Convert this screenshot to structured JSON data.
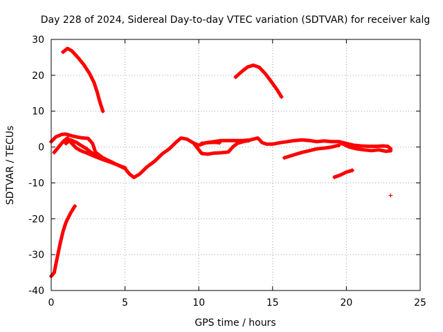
{
  "chart_data": {
    "type": "scatter",
    "title": "Day 228 of 2024, Sidereal Day-to-day VTEC variation (SDTVAR) for receiver kalg",
    "xlabel": "GPS time / hours",
    "ylabel": "SDTVAR / TECUs",
    "xlim": [
      0,
      25
    ],
    "ylim": [
      -40,
      30
    ],
    "xticks": [
      0,
      5,
      10,
      15,
      20,
      25
    ],
    "yticks": [
      -40,
      -30,
      -20,
      -10,
      0,
      10,
      20,
      30
    ],
    "grid": true,
    "color": "#ff0000",
    "marker": "+",
    "series": [
      {
        "name": "arc-early-high",
        "points": [
          [
            0.8,
            26.5
          ],
          [
            1.1,
            27.5
          ],
          [
            1.4,
            26.8
          ],
          [
            1.8,
            25
          ],
          [
            2.2,
            23
          ],
          [
            2.6,
            20.5
          ],
          [
            2.9,
            18
          ],
          [
            3.1,
            15.5
          ],
          [
            3.3,
            12.5
          ],
          [
            3.5,
            10
          ]
        ]
      },
      {
        "name": "arc-early-low",
        "points": [
          [
            0.0,
            -36
          ],
          [
            0.2,
            -35
          ],
          [
            0.4,
            -31
          ],
          [
            0.6,
            -27
          ],
          [
            0.8,
            -23.5
          ],
          [
            1.0,
            -21
          ],
          [
            1.3,
            -18.5
          ],
          [
            1.6,
            -16.5
          ]
        ]
      },
      {
        "name": "arc-midday-high",
        "points": [
          [
            12.5,
            19.5
          ],
          [
            12.9,
            21
          ],
          [
            13.3,
            22.3
          ],
          [
            13.7,
            22.8
          ],
          [
            14.1,
            22.2
          ],
          [
            14.5,
            20.5
          ],
          [
            14.9,
            18.3
          ],
          [
            15.3,
            16
          ],
          [
            15.6,
            14
          ]
        ]
      },
      {
        "name": "arc-main-1",
        "points": [
          [
            0.0,
            1.5
          ],
          [
            0.3,
            2.8
          ],
          [
            0.7,
            3.5
          ],
          [
            1.0,
            3.6
          ],
          [
            1.5,
            3.0
          ],
          [
            2.0,
            2.6
          ],
          [
            2.5,
            2.4
          ],
          [
            2.8,
            1
          ],
          [
            3.0,
            -1.5
          ],
          [
            3.5,
            -3
          ],
          [
            4.0,
            -4
          ],
          [
            4.5,
            -5
          ],
          [
            5.0,
            -6
          ],
          [
            5.3,
            -7.5
          ],
          [
            5.6,
            -8.5
          ],
          [
            6.0,
            -7.5
          ],
          [
            6.5,
            -5.5
          ],
          [
            7.0,
            -4
          ],
          [
            7.5,
            -2
          ],
          [
            8.0,
            -0.5
          ],
          [
            8.5,
            1.5
          ],
          [
            8.8,
            2.5
          ],
          [
            9.2,
            2.2
          ],
          [
            9.7,
            1
          ],
          [
            10.0,
            0.5
          ],
          [
            10.5,
            1.2
          ],
          [
            11.0,
            1.5
          ],
          [
            11.5,
            1.8
          ],
          [
            12.0,
            1.8
          ],
          [
            12.5,
            1.8
          ],
          [
            13.0,
            1.8
          ],
          [
            13.5,
            2
          ],
          [
            14.0,
            2.5
          ],
          [
            14.3,
            1.2
          ],
          [
            14.6,
            0.8
          ],
          [
            15.0,
            0.8
          ],
          [
            15.5,
            1.2
          ],
          [
            16.0,
            1.5
          ],
          [
            16.5,
            1.8
          ],
          [
            17.0,
            2
          ],
          [
            17.5,
            1.8
          ],
          [
            18.0,
            1.5
          ],
          [
            18.5,
            1.7
          ],
          [
            19.0,
            1.5
          ],
          [
            19.5,
            1.5
          ],
          [
            20.0,
            1
          ],
          [
            20.5,
            0.5
          ],
          [
            21.0,
            0.3
          ],
          [
            21.5,
            0.2
          ],
          [
            22.0,
            0.2
          ],
          [
            22.5,
            0.3
          ],
          [
            22.8,
            0.2
          ],
          [
            23.0,
            -0.5
          ]
        ]
      },
      {
        "name": "arc-main-2",
        "points": [
          [
            0.2,
            -1.5
          ],
          [
            0.5,
            0
          ],
          [
            0.8,
            1.5
          ],
          [
            1.1,
            2.5
          ],
          [
            1.4,
            1.0
          ],
          [
            1.7,
            -0.3
          ],
          [
            2.0,
            -1
          ],
          [
            2.3,
            -1.5
          ],
          [
            2.6,
            -2
          ],
          [
            3.0,
            -2.7
          ],
          [
            3.5,
            -3.5
          ],
          [
            4.0,
            -4.2
          ],
          [
            4.5,
            -5
          ],
          [
            5.0,
            -5.8
          ]
        ]
      },
      {
        "name": "arc-main-3",
        "points": [
          [
            1.0,
            1
          ],
          [
            1.3,
            2
          ],
          [
            1.7,
            1.3
          ],
          [
            2.0,
            0.5
          ],
          [
            2.4,
            -0.5
          ],
          [
            2.8,
            -1.8
          ],
          [
            3.2,
            -2.5
          ]
        ]
      },
      {
        "name": "arc-main-4",
        "points": [
          [
            9.7,
            0.8
          ],
          [
            10.2,
            -1.8
          ],
          [
            10.6,
            -2
          ],
          [
            11.0,
            -1.7
          ],
          [
            11.5,
            -1.6
          ],
          [
            12.0,
            -1.4
          ],
          [
            12.3,
            0
          ],
          [
            12.6,
            1
          ],
          [
            13.0,
            1.5
          ],
          [
            13.4,
            1.8
          ]
        ]
      },
      {
        "name": "arc-main-5",
        "points": [
          [
            10.2,
            1
          ],
          [
            10.6,
            1.2
          ],
          [
            11.0,
            1.3
          ],
          [
            11.4,
            1.2
          ]
        ]
      },
      {
        "name": "arc-late-1",
        "points": [
          [
            15.8,
            -3
          ],
          [
            16.2,
            -2.5
          ],
          [
            16.6,
            -2
          ],
          [
            17.0,
            -1.5
          ],
          [
            17.5,
            -1
          ],
          [
            18.0,
            -0.5
          ],
          [
            18.5,
            -0.3
          ],
          [
            19.0,
            0
          ],
          [
            19.5,
            0.5
          ]
        ]
      },
      {
        "name": "arc-late-2",
        "points": [
          [
            19.7,
            1
          ],
          [
            20.2,
            0
          ],
          [
            20.7,
            -0.5
          ],
          [
            21.2,
            -0.8
          ],
          [
            21.7,
            -1
          ],
          [
            22.2,
            -0.8
          ],
          [
            22.7,
            -1.2
          ],
          [
            23.0,
            -1
          ]
        ]
      },
      {
        "name": "arc-late-3",
        "points": [
          [
            19.2,
            -8.4
          ],
          [
            19.6,
            -7.8
          ],
          [
            20.0,
            -7
          ],
          [
            20.4,
            -6.5
          ]
        ]
      },
      {
        "name": "isolated-point",
        "points": [
          [
            23.0,
            -13.5
          ]
        ]
      }
    ]
  }
}
